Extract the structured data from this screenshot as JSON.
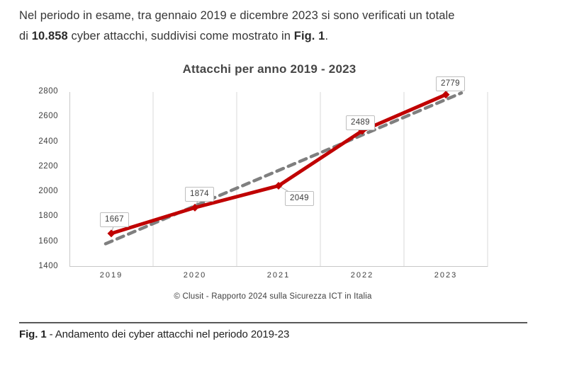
{
  "intro": {
    "segments": [
      "Nel periodo in esame, tra gennaio 2019 e dicembre 2023 si sono verificati un totale",
      "di ",
      "10.858",
      " cyber attacchi, suddivisi come mostrato in ",
      "Fig. 1",
      "."
    ]
  },
  "chart_data": {
    "type": "line",
    "title": "Attacchi per anno 2019 - 2023",
    "categories": [
      "2019",
      "2020",
      "2021",
      "2022",
      "2023"
    ],
    "series": [
      {
        "name": "Attacchi per anno",
        "values": [
          1667,
          1874,
          2049,
          2489,
          2779
        ],
        "color": "#c00000",
        "marker": "diamond"
      },
      {
        "name": "trendline-lineare",
        "type": "linear-trend",
        "style": "dashed",
        "color": "#7f7f7f"
      }
    ],
    "data_labels_visible": true,
    "ylim": [
      1400,
      2800
    ],
    "ytick_step": 200,
    "yticks": [
      1400,
      1600,
      1800,
      2000,
      2200,
      2400,
      2600,
      2800
    ],
    "grid": "vertical-only",
    "legend": "none",
    "source": "© Clusit - Rapporto 2024 sulla Sicurezza ICT in Italia",
    "colors": {
      "line": "#c00000",
      "trend": "#7f7f7f",
      "gridline": "#d9d9d9",
      "axis": "#c8c8c8",
      "callout_border": "#bfbfbf",
      "pointer": "#a6a6a6"
    }
  },
  "figure": {
    "label": "Fig. 1",
    "text": " - Andamento dei cyber attacchi nel periodo 2019-23"
  }
}
